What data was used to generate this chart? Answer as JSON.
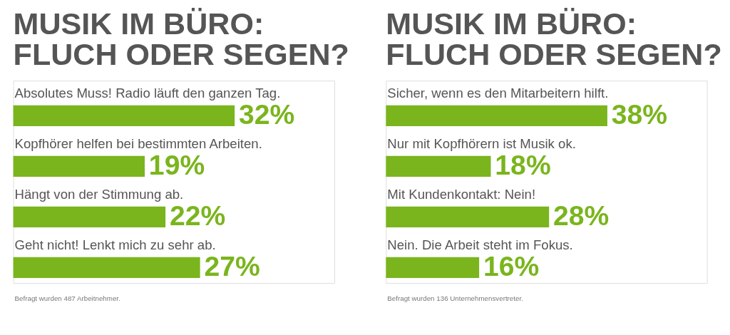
{
  "chart_data": [
    {
      "type": "bar",
      "orientation": "horizontal",
      "title": "MUSIK IM BÜRO:\nFLUCH ODER SEGEN?",
      "categories": [
        "Absolutes Muss! Radio läuft den ganzen Tag.",
        "Kopfhörer helfen bei bestimmten Arbeiten.",
        "Hängt von der Stimmung ab.",
        "Geht nicht! Lenkt mich zu sehr ab."
      ],
      "values": [
        32,
        19,
        22,
        27
      ],
      "value_labels": [
        "32%",
        "19%",
        "22%",
        "27%"
      ],
      "color": "#7ab51d",
      "annotations": [
        "Befragt wurden 487 Arbeitnehmer."
      ]
    },
    {
      "type": "bar",
      "orientation": "horizontal",
      "title": "MUSIK IM BÜRO:\nFLUCH ODER SEGEN?",
      "categories": [
        "Sicher, wenn es den Mitarbeitern hilft.",
        "Nur mit Kopfhörern ist Musik ok.",
        "Mit Kundenkontakt: Nein!",
        "Nein. Die Arbeit steht im Fokus."
      ],
      "values": [
        38,
        18,
        28,
        16
      ],
      "value_labels": [
        "38%",
        "18%",
        "28%",
        "16%"
      ],
      "color": "#7ab51d",
      "annotations": [
        "Befragt wurden 136 Unternehmensvertreter."
      ]
    }
  ]
}
